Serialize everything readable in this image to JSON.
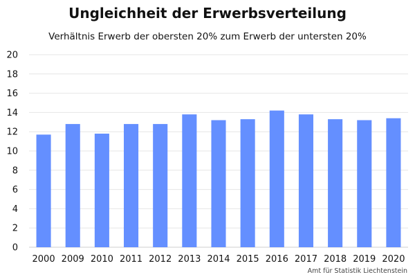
{
  "chart_data": {
    "type": "bar",
    "title": "Ungleichheit der Erwerbsverteilung",
    "subtitle": "Verhältnis Erwerb der obersten 20% zum Erwerb der untersten 20%",
    "categories": [
      "2000",
      "2009",
      "2010",
      "2011",
      "2012",
      "2013",
      "2014",
      "2015",
      "2016",
      "2017",
      "2018",
      "2019",
      "2020"
    ],
    "values": [
      11.7,
      12.8,
      11.8,
      12.8,
      12.8,
      13.8,
      13.2,
      13.3,
      14.2,
      13.8,
      13.3,
      13.2,
      13.4
    ],
    "ylim": [
      0,
      20
    ],
    "yticks": [
      0,
      2,
      4,
      6,
      8,
      10,
      12,
      14,
      16,
      18,
      20
    ],
    "grid": true,
    "bar_color": "#648fff",
    "source": "Amt für Statistik Liechtenstein"
  }
}
